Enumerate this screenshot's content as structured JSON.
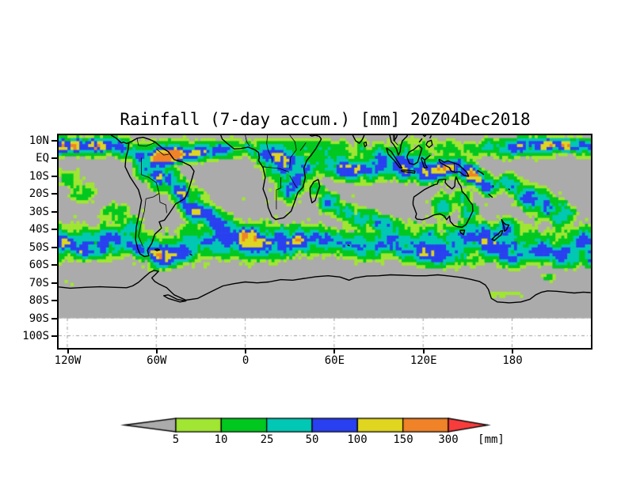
{
  "title": "Rainfall (7-day accum.) [mm] 20Z04Dec2018",
  "axes": {
    "lat_ticks": [
      "10N",
      "EQ",
      "10S",
      "20S",
      "30S",
      "40S",
      "50S",
      "60S",
      "70S",
      "80S",
      "90S",
      "100S"
    ],
    "lon_ticks": [
      "120W",
      "60W",
      "0",
      "60E",
      "120E",
      "180"
    ]
  },
  "legend": {
    "thresholds": [
      "5",
      "10",
      "25",
      "50",
      "100",
      "150",
      "300"
    ],
    "unit": "[mm]"
  },
  "colors": {
    "background": "#ffffff",
    "map_gray": "#ababab",
    "grid": "#999999",
    "coast": "#000000",
    "frame": "#000000",
    "bins": [
      "#a0e632",
      "#00c81e",
      "#00c8b4",
      "#2840f0",
      "#e0d620",
      "#f08228",
      "#f83c3c"
    ]
  },
  "chart_data": {
    "type": "heatmap",
    "title": "Rainfall (7-day accum.) [mm] 20Z04Dec2018",
    "projection": "equirectangular world map",
    "lon_ticks": [
      "120W",
      "60W",
      "0",
      "60E",
      "120E",
      "180"
    ],
    "lat_ticks": [
      "10N",
      "EQ",
      "10S",
      "20S",
      "30S",
      "40S",
      "50S",
      "60S",
      "70S",
      "80S",
      "90S",
      "100S"
    ],
    "lon_range_deg": [
      -126,
      233
    ],
    "lat_range_deg": [
      13,
      -107
    ],
    "shaded_lat_limit_deg": -90,
    "legend_bins_mm": [
      5,
      10,
      25,
      50,
      100,
      150,
      300
    ],
    "legend_bin_colors": [
      "#a0e632",
      "#00c81e",
      "#00c8b4",
      "#2840f0",
      "#e0d620",
      "#f08228",
      "#f83c3c"
    ],
    "no_data_color": "#ababab",
    "pattern_summary": "Heavy rain bands along the ITCZ near 5-8N across the Pacific and Atlantic, over the Amazon, Congo basin, Indian Ocean and Maritime Continent; an intense SPCZ band southeast of New Guinea; broad green/cyan/blue storm-track bands over the Southern Ocean 35S-60S with orange/yellow cores southeast of South America and south of the Indian Ocean; dry gray subtropical zones and a mostly dry Antarctic interior with a thin green streak along the Ross Ice Shelf front."
  }
}
